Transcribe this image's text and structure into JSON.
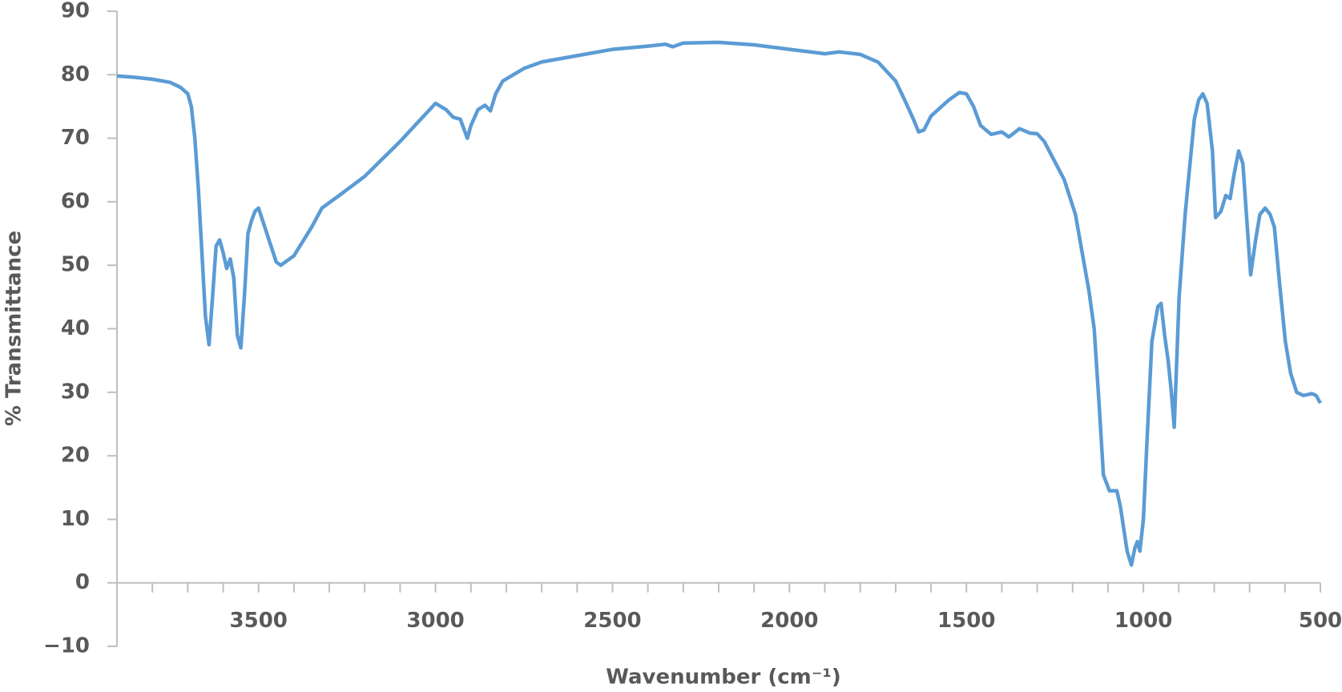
{
  "chart_data": {
    "type": "line",
    "xlabel": "Wavenumber (cm⁻¹)",
    "ylabel": "% Transmittance",
    "color": "#5b9bd5",
    "xlim": [
      3900,
      500
    ],
    "ylim": [
      -10,
      90
    ],
    "xticks": [
      3500,
      3000,
      2500,
      2000,
      1500,
      1000,
      500
    ],
    "xminorticks": [
      3800,
      3700,
      3600,
      3400,
      3300,
      3200,
      3100,
      2900,
      2800,
      2700,
      2600,
      2400,
      2300,
      2200,
      2100,
      1900,
      1800,
      1700,
      1600,
      1400,
      1300,
      1200,
      1100,
      900,
      800,
      700,
      600
    ],
    "yticks": [
      {
        "value": -10,
        "label": "−10"
      },
      0,
      10,
      20,
      30,
      40,
      50,
      60,
      70,
      80,
      90
    ],
    "x": [
      3900,
      3850,
      3800,
      3750,
      3720,
      3700,
      3690,
      3680,
      3670,
      3660,
      3650,
      3640,
      3630,
      3620,
      3610,
      3600,
      3590,
      3580,
      3570,
      3560,
      3550,
      3540,
      3530,
      3520,
      3510,
      3500,
      3450,
      3437,
      3400,
      3350,
      3321,
      3272,
      3200,
      3100,
      3000,
      2970,
      2950,
      2930,
      2910,
      2900,
      2880,
      2860,
      2845,
      2830,
      2810,
      2750,
      2700,
      2600,
      2500,
      2400,
      2350,
      2330,
      2300,
      2200,
      2100,
      2000,
      1900,
      1860,
      1800,
      1750,
      1700,
      1670,
      1650,
      1635,
      1620,
      1600,
      1550,
      1520,
      1500,
      1480,
      1460,
      1430,
      1400,
      1380,
      1350,
      1320,
      1300,
      1280,
      1252,
      1224,
      1192,
      1173,
      1154,
      1139,
      1125,
      1113,
      1096,
      1075,
      1065,
      1046,
      1034,
      1024,
      1017,
      1010,
      1000,
      990,
      976,
      959,
      950,
      940,
      930,
      921,
      913,
      899,
      882,
      870,
      856,
      844,
      832,
      820,
      805,
      796,
      781,
      767,
      755,
      745,
      731,
      719,
      709,
      697,
      683,
      671,
      656,
      642,
      630,
      615,
      599,
      584,
      567,
      548,
      524,
      512,
      500
    ],
    "values": [
      79.8,
      79.6,
      79.3,
      78.8,
      78,
      77,
      75,
      70,
      62,
      52,
      42,
      37.5,
      45,
      53,
      54,
      52,
      49.5,
      51,
      48,
      39,
      37,
      45,
      55,
      57,
      58.5,
      59,
      50.5,
      50,
      51.5,
      56,
      59,
      61,
      64,
      69.5,
      75.5,
      74.5,
      73.3,
      73,
      70,
      72,
      74.5,
      75.2,
      74.3,
      77,
      79,
      81,
      82,
      83,
      84,
      84.5,
      84.8,
      84.4,
      85,
      85.1,
      84.7,
      84,
      83.3,
      83.6,
      83.2,
      82,
      79,
      75.5,
      73,
      71,
      71.3,
      73.5,
      76,
      77.2,
      77,
      75,
      72,
      70.6,
      71,
      70.2,
      71.5,
      70.8,
      70.7,
      69.5,
      66.5,
      63.5,
      58,
      52,
      46,
      40,
      28,
      17,
      14.5,
      14.5,
      12,
      5,
      2.8,
      5.5,
      6.5,
      5,
      10,
      22,
      38,
      43.5,
      44,
      39,
      35,
      30,
      24.5,
      45,
      58,
      65,
      73,
      76,
      77,
      75.5,
      68,
      57.5,
      58.5,
      61,
      60.5,
      64,
      68,
      66,
      58,
      48.5,
      54,
      58,
      59,
      58,
      56,
      47,
      38,
      33,
      30,
      29.5,
      29.8,
      29.5,
      28.3
    ]
  }
}
